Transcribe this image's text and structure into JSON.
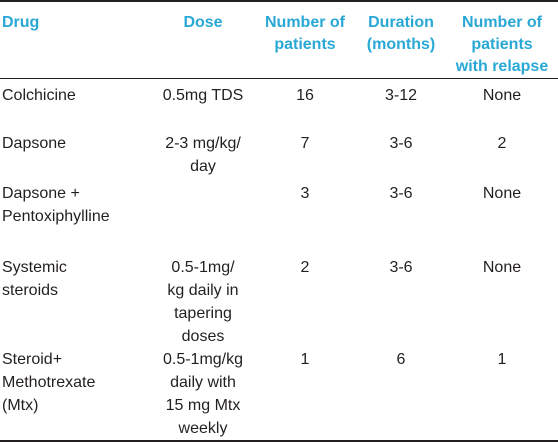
{
  "headers": {
    "drug": "Drug",
    "dose": "Dose",
    "patients": "Number of\npatients",
    "duration": "Duration\n(months)",
    "relapse": "Number of\npatients\nwith relapse"
  },
  "rows": [
    {
      "drug": "Colchicine",
      "dose": "0.5mg TDS",
      "patients": "16",
      "duration": "3-12",
      "relapse": "None"
    },
    {
      "drug": "Dapsone",
      "dose": "2-3 mg/kg/\nday",
      "patients": "7",
      "duration": "3-6",
      "relapse": "2"
    },
    {
      "drug": "Dapsone +\nPentoxiphylline",
      "dose": "",
      "patients": "3",
      "duration": "3-6",
      "relapse": "None"
    },
    {
      "drug": "Systemic\nsteroids",
      "dose": "0.5-1mg/\nkg daily in\ntapering\ndoses",
      "patients": "2",
      "duration": "3-6",
      "relapse": "None"
    },
    {
      "drug": "Steroid+\nMethotrexate\n(Mtx)",
      "dose": "0.5-1mg/kg\ndaily with\n15 mg Mtx\nweekly",
      "patients": "1",
      "duration": "6",
      "relapse": "1"
    }
  ],
  "colors": {
    "header_text": "#29a8d6",
    "body_text": "#231f20",
    "rule": "#231f20"
  }
}
